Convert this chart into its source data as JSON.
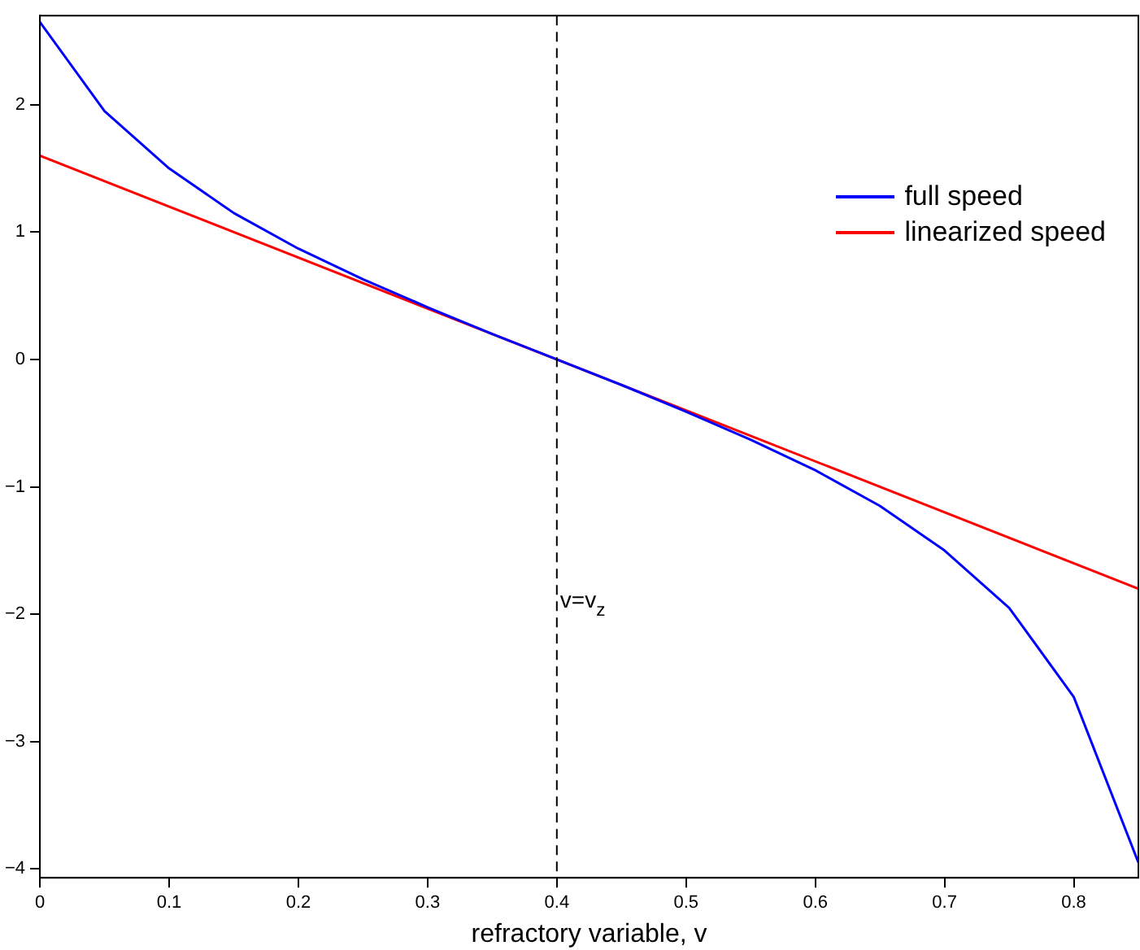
{
  "chart_data": {
    "type": "line",
    "xlabel": "refractory variable, v",
    "xlim": [
      0,
      0.85
    ],
    "ylim": [
      -4.07,
      2.7
    ],
    "xticks": [
      0,
      0.1,
      0.2,
      0.3,
      0.4,
      0.5,
      0.6,
      0.7,
      0.8
    ],
    "yticks": [
      -4,
      -3,
      -2,
      -1,
      0,
      1,
      2
    ],
    "series": [
      {
        "name": "full speed",
        "color": "#0000ff",
        "x": [
          0,
          0.05,
          0.1,
          0.15,
          0.2,
          0.25,
          0.3,
          0.35,
          0.4,
          0.45,
          0.5,
          0.55,
          0.6,
          0.65,
          0.7,
          0.75,
          0.8,
          0.85
        ],
        "values": [
          2.65,
          1.95,
          1.5,
          1.15,
          0.87,
          0.63,
          0.41,
          0.2,
          0,
          -0.2,
          -0.41,
          -0.63,
          -0.87,
          -1.15,
          -1.5,
          -1.95,
          -2.65,
          -3.95
        ]
      },
      {
        "name": "linearized speed",
        "color": "#ff0000",
        "x": [
          0,
          0.85
        ],
        "values": [
          1.6,
          -1.8
        ]
      }
    ],
    "ref_lines": [
      {
        "axis": "x",
        "value": 0.4,
        "color": "#000000",
        "line_style": "dashed"
      }
    ],
    "annotations": [
      {
        "text": "v=v$_{z}$",
        "x": 0.4,
        "y": -1.9
      }
    ],
    "legend": "top right",
    "grid": false,
    "marker": "none",
    "line_style": "solid"
  }
}
